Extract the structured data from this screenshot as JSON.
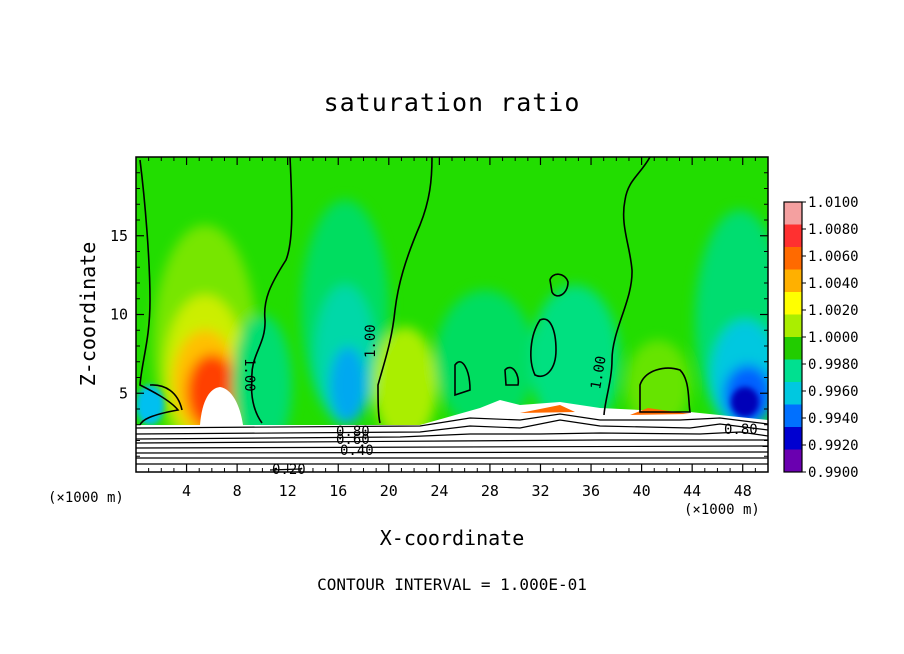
{
  "chart_data": {
    "type": "heatmap",
    "title": "saturation ratio",
    "xlabel": "X-coordinate",
    "ylabel": "Z-coordinate",
    "x_unit": "(×1000 m)",
    "xlim": [
      0,
      50
    ],
    "ylim": [
      0,
      20
    ],
    "x_ticks": [
      4,
      8,
      12,
      16,
      20,
      24,
      28,
      32,
      36,
      40,
      44,
      48
    ],
    "y_ticks": [
      5,
      10,
      15
    ],
    "footer": "CONTOUR INTERVAL = 1.000E-01",
    "colorbar": {
      "labels": [
        "1.0100",
        "1.0080",
        "1.0060",
        "1.0040",
        "1.0020",
        "1.0000",
        "0.9980",
        "0.9960",
        "0.9940",
        "0.9920",
        "0.9900"
      ],
      "colors": [
        "#f4a0a0",
        "#ff3030",
        "#ff6a00",
        "#ffb000",
        "#ffff00",
        "#aaee00",
        "#22cc00",
        "#00e090",
        "#00c8e0",
        "#0070ff",
        "#0000d0",
        "#6a00b0"
      ]
    },
    "contour_labels": [
      "1.00",
      "1.00",
      "1.00",
      "0.80",
      "0.60",
      "0.40",
      "0.20",
      "0.80"
    ],
    "colors": {
      "background_field": "#22dd00",
      "white_region": "#ffffff"
    }
  }
}
